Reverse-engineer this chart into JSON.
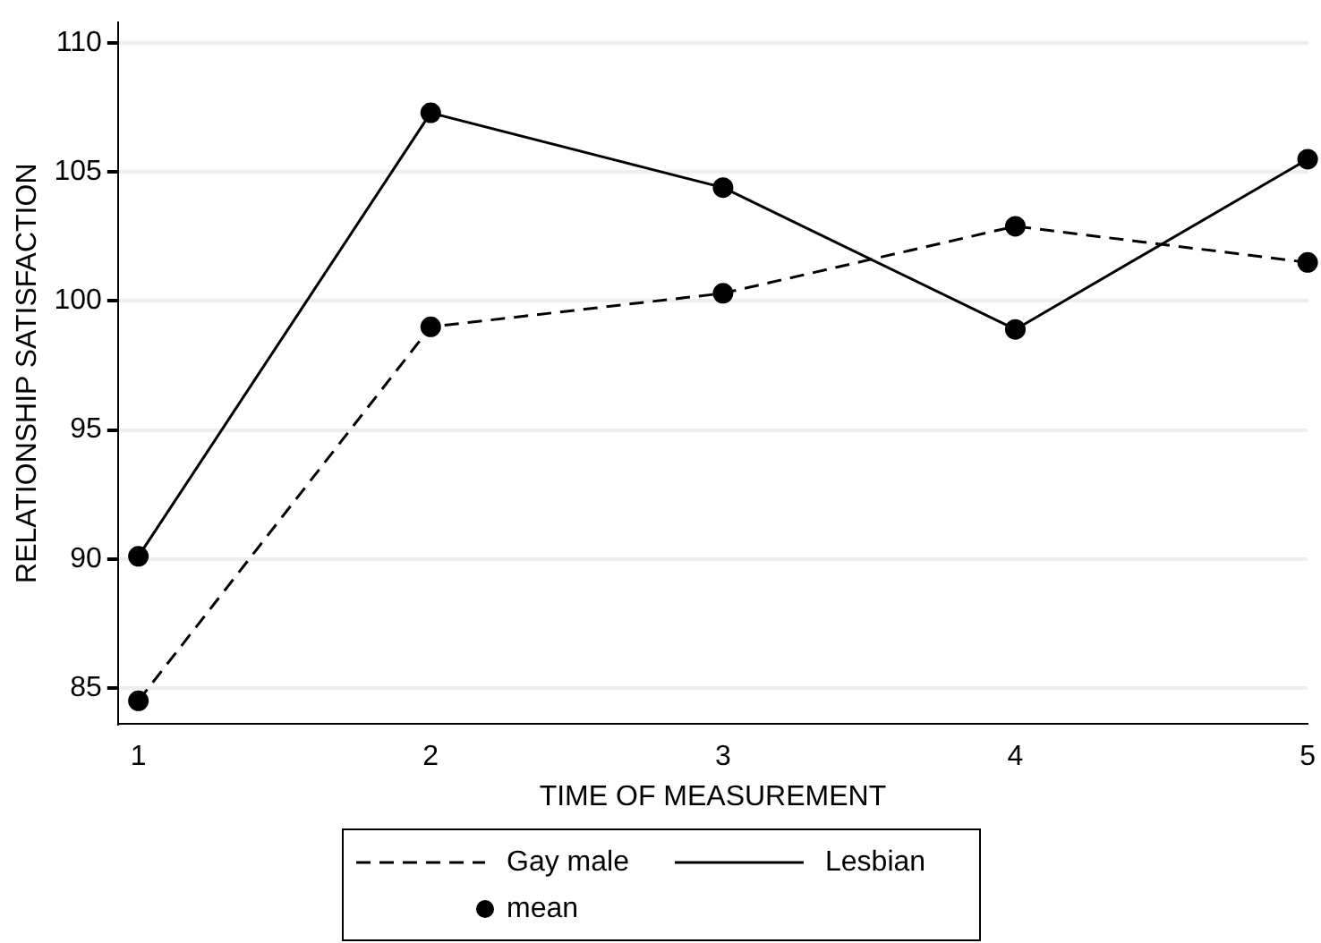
{
  "chart_data": {
    "type": "line",
    "xlabel": "TIME OF MEASUREMENT",
    "ylabel": "RELATIONSHIP SATISFACTION",
    "x": [
      1,
      2,
      3,
      4,
      5
    ],
    "series": [
      {
        "name": "Gay male",
        "color": "#000000",
        "values": [
          84.5,
          99.0,
          100.3,
          102.9,
          101.5
        ],
        "line_style": "dashed",
        "marker": "none"
      },
      {
        "name": "Lesbian",
        "color": "#000000",
        "values": [
          90.1,
          107.3,
          104.4,
          98.9,
          105.5
        ],
        "line_style": "solid",
        "marker": "none"
      },
      {
        "name": "mean",
        "type": "scatter",
        "color": "#000000",
        "x": [
          1,
          2,
          3,
          4,
          5,
          1,
          2,
          3,
          4,
          5
        ],
        "values": [
          84.5,
          99.0,
          100.3,
          102.9,
          101.5,
          90.1,
          107.3,
          104.4,
          98.9,
          105.5
        ],
        "marker": "circle"
      }
    ],
    "xlim": [
      0.93,
      5
    ],
    "xticks": [
      1,
      2,
      3,
      4,
      5
    ],
    "ylim": [
      83.6,
      110.8
    ],
    "yticks": [
      85,
      90,
      95,
      100,
      105,
      110
    ],
    "grid": "y",
    "legend": "bottom"
  }
}
